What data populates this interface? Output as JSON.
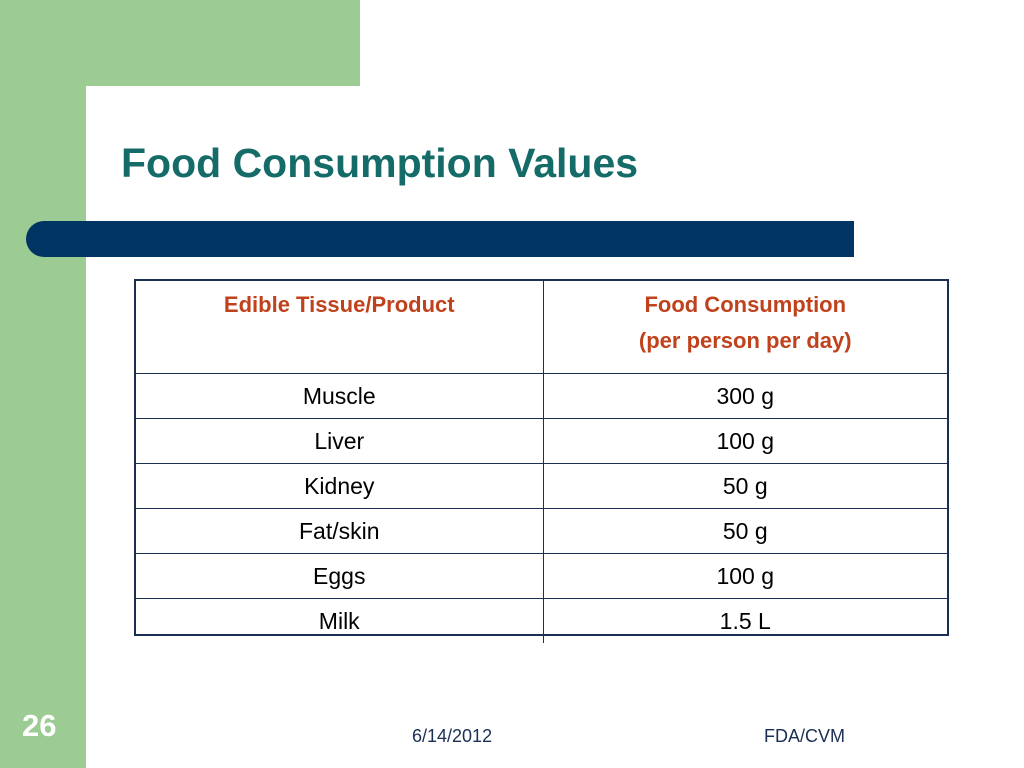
{
  "slide": {
    "title": "Food Consumption Values",
    "number": "26"
  },
  "table": {
    "headers": {
      "col1": "Edible Tissue/Product",
      "col2_line1": "Food Consumption",
      "col2_line2": "(per person per day)"
    },
    "rows": [
      {
        "tissue": "Muscle",
        "consumption": "300 g"
      },
      {
        "tissue": "Liver",
        "consumption": "100 g"
      },
      {
        "tissue": "Kidney",
        "consumption": "50 g"
      },
      {
        "tissue": "Fat/skin",
        "consumption": "50 g"
      },
      {
        "tissue": "Eggs",
        "consumption": "100 g"
      },
      {
        "tissue": "Milk",
        "consumption": "1.5 L"
      }
    ]
  },
  "footer": {
    "date": "6/14/2012",
    "organization": "FDA/CVM"
  },
  "colors": {
    "title": "#156b68",
    "accent_bar": "#003462",
    "side_panel": "#9ccc94",
    "header_text": "#c0421c",
    "table_border": "#1b2f52"
  }
}
